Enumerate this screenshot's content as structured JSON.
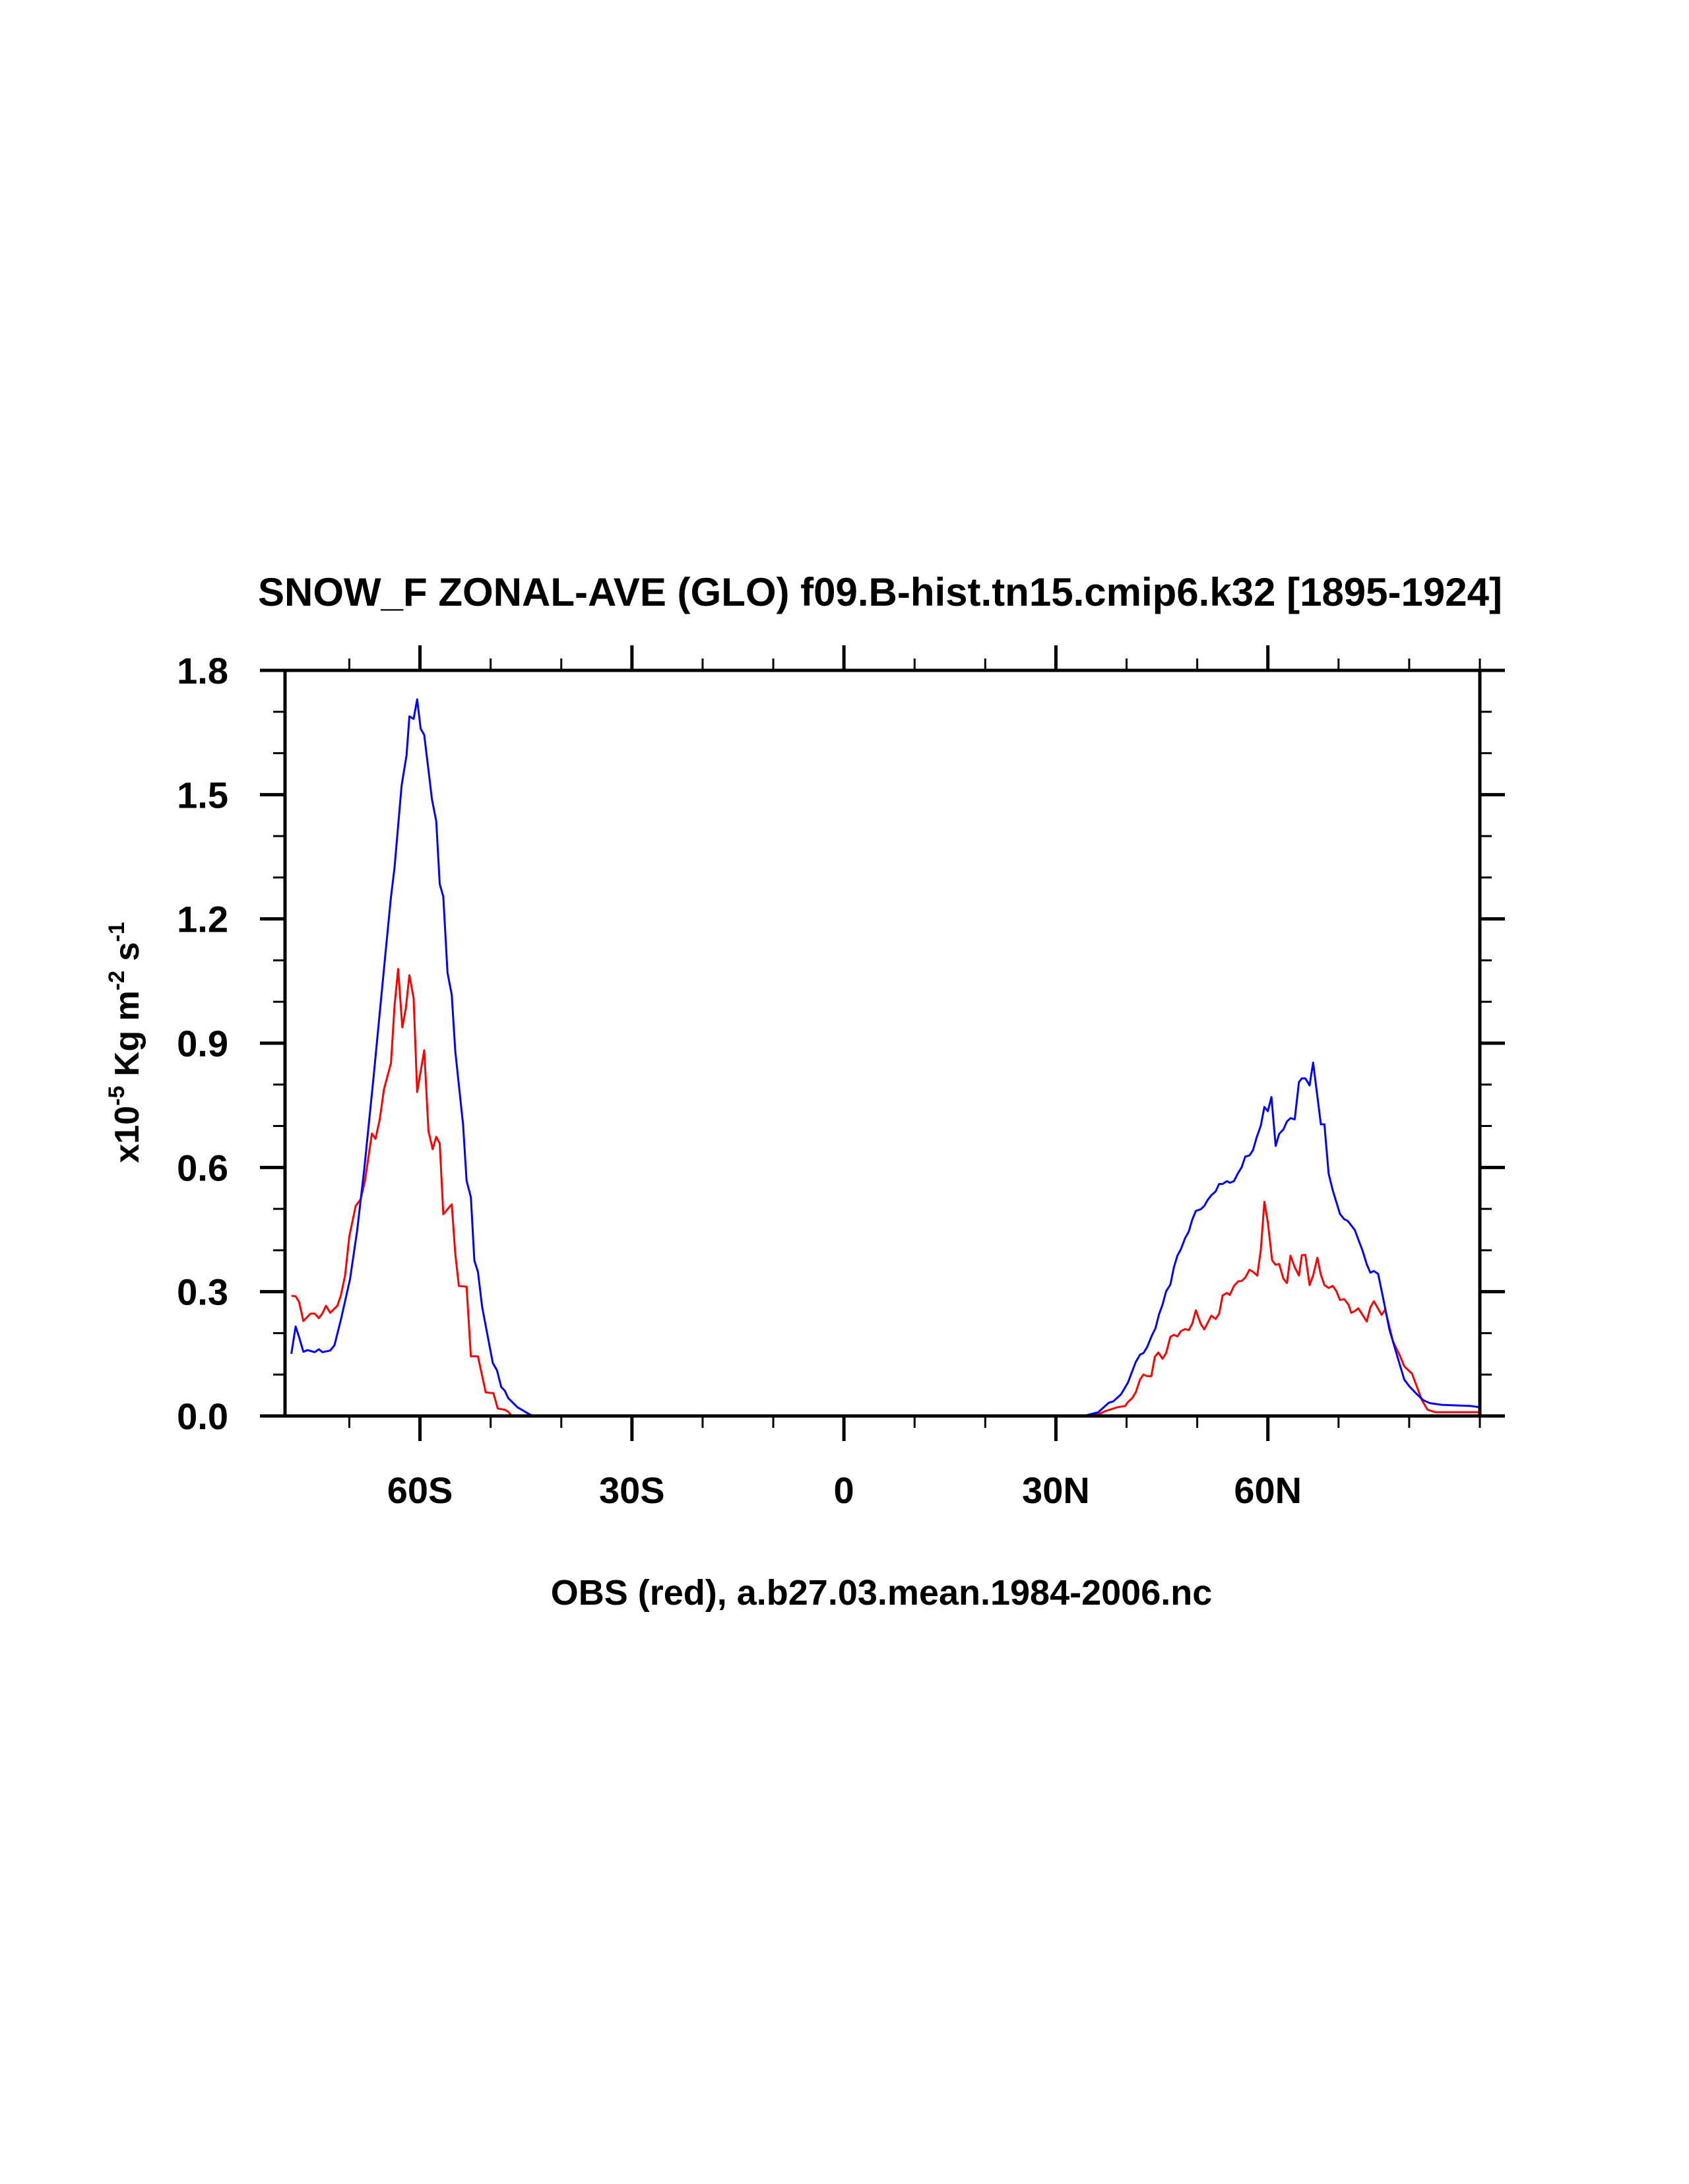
{
  "chart_data": {
    "type": "line",
    "title": "SNOW_F ZONAL-AVE (GLO) f09.B-hist.tn15.cmip6.k32 [1895-1924]",
    "xlabel": "OBS (red), a.b27.03.mean.1984-2006.nc",
    "ylabel": {
      "prefix": "x10",
      "exp1": "-5",
      "mid": " Kg m",
      "exp2": "-2",
      "mid2": " s",
      "exp3": "-1"
    },
    "xlim": [
      -79.1,
      90
    ],
    "ylim": [
      0,
      1.8
    ],
    "grid": false,
    "x_ticks": [
      {
        "value": -60,
        "label": "60S"
      },
      {
        "value": -30,
        "label": "30S"
      },
      {
        "value": 0,
        "label": "0"
      },
      {
        "value": 30,
        "label": "30N"
      },
      {
        "value": 60,
        "label": "60N"
      }
    ],
    "x_minor_step": 10,
    "y_ticks": [
      {
        "value": 0,
        "label": "0.0"
      },
      {
        "value": 0.3,
        "label": "0.3"
      },
      {
        "value": 0.6,
        "label": "0.6"
      },
      {
        "value": 0.9,
        "label": "0.9"
      },
      {
        "value": 1.2,
        "label": "1.2"
      },
      {
        "value": 1.5,
        "label": "1.5"
      },
      {
        "value": 1.8,
        "label": "1.8"
      }
    ],
    "y_minor_step": 0.1,
    "series": [
      {
        "name": "OBS",
        "color": "#ff0000",
        "points": [
          [
            -78.2,
            0.29
          ],
          [
            -77.6,
            0.289
          ],
          [
            -77.1,
            0.275
          ],
          [
            -76.5,
            0.229
          ],
          [
            -75.5,
            0.247
          ],
          [
            -74.9,
            0.247
          ],
          [
            -74.3,
            0.236
          ],
          [
            -73.8,
            0.248
          ],
          [
            -73.3,
            0.266
          ],
          [
            -72.7,
            0.249
          ],
          [
            -71.7,
            0.266
          ],
          [
            -71.2,
            0.291
          ],
          [
            -70.6,
            0.339
          ],
          [
            -70.0,
            0.434
          ],
          [
            -69.1,
            0.507
          ],
          [
            -68.4,
            0.523
          ],
          [
            -67.8,
            0.566
          ],
          [
            -66.8,
            0.682
          ],
          [
            -66.3,
            0.669
          ],
          [
            -65.7,
            0.715
          ],
          [
            -65.1,
            0.788
          ],
          [
            -64.1,
            0.852
          ],
          [
            -63.6,
            0.99
          ],
          [
            -63.1,
            1.079
          ],
          [
            -62.5,
            0.938
          ],
          [
            -62.0,
            0.984
          ],
          [
            -61.5,
            1.064
          ],
          [
            -60.9,
            1.009
          ],
          [
            -60.4,
            0.782
          ],
          [
            -59.4,
            0.883
          ],
          [
            -58.8,
            0.688
          ],
          [
            -58.2,
            0.644
          ],
          [
            -57.7,
            0.674
          ],
          [
            -57.2,
            0.658
          ],
          [
            -56.7,
            0.487
          ],
          [
            -55.5,
            0.511
          ],
          [
            -55.0,
            0.391
          ],
          [
            -54.5,
            0.314
          ],
          [
            -53.4,
            0.312
          ],
          [
            -52.8,
            0.144
          ],
          [
            -51.8,
            0.144
          ],
          [
            -50.7,
            0.057
          ],
          [
            -49.6,
            0.055
          ],
          [
            -49.0,
            0.018
          ],
          [
            -48.0,
            0.015
          ],
          [
            -47.5,
            0.01
          ],
          [
            -47.0,
            0.0
          ],
          [
            33.9,
            0.0
          ],
          [
            36.0,
            0.004
          ],
          [
            36.9,
            0.011
          ],
          [
            38.7,
            0.021
          ],
          [
            39.8,
            0.024
          ],
          [
            40.2,
            0.034
          ],
          [
            40.8,
            0.043
          ],
          [
            41.3,
            0.057
          ],
          [
            41.9,
            0.088
          ],
          [
            42.4,
            0.1
          ],
          [
            42.9,
            0.096
          ],
          [
            43.5,
            0.096
          ],
          [
            44.0,
            0.143
          ],
          [
            44.5,
            0.153
          ],
          [
            45.1,
            0.138
          ],
          [
            45.6,
            0.152
          ],
          [
            46.2,
            0.191
          ],
          [
            46.7,
            0.196
          ],
          [
            47.2,
            0.192
          ],
          [
            47.7,
            0.205
          ],
          [
            48.3,
            0.21
          ],
          [
            48.8,
            0.207
          ],
          [
            49.3,
            0.223
          ],
          [
            49.8,
            0.255
          ],
          [
            50.5,
            0.222
          ],
          [
            51.0,
            0.209
          ],
          [
            52.0,
            0.242
          ],
          [
            52.6,
            0.234
          ],
          [
            53.1,
            0.247
          ],
          [
            53.6,
            0.291
          ],
          [
            54.2,
            0.297
          ],
          [
            54.6,
            0.292
          ],
          [
            55.2,
            0.314
          ],
          [
            55.8,
            0.325
          ],
          [
            56.3,
            0.326
          ],
          [
            56.8,
            0.334
          ],
          [
            57.4,
            0.353
          ],
          [
            57.9,
            0.348
          ],
          [
            58.5,
            0.339
          ],
          [
            59.0,
            0.401
          ],
          [
            59.5,
            0.517
          ],
          [
            60.0,
            0.467
          ],
          [
            60.6,
            0.376
          ],
          [
            61.1,
            0.365
          ],
          [
            61.6,
            0.367
          ],
          [
            62.2,
            0.331
          ],
          [
            62.7,
            0.321
          ],
          [
            63.2,
            0.387
          ],
          [
            63.8,
            0.359
          ],
          [
            64.4,
            0.339
          ],
          [
            64.8,
            0.388
          ],
          [
            65.3,
            0.389
          ],
          [
            65.9,
            0.316
          ],
          [
            66.4,
            0.339
          ],
          [
            67.0,
            0.382
          ],
          [
            67.5,
            0.341
          ],
          [
            68.0,
            0.316
          ],
          [
            68.6,
            0.309
          ],
          [
            69.2,
            0.314
          ],
          [
            69.7,
            0.301
          ],
          [
            70.2,
            0.28
          ],
          [
            70.8,
            0.282
          ],
          [
            71.4,
            0.269
          ],
          [
            71.8,
            0.249
          ],
          [
            72.3,
            0.253
          ],
          [
            72.8,
            0.26
          ],
          [
            74.0,
            0.228
          ],
          [
            74.5,
            0.262
          ],
          [
            75.0,
            0.277
          ],
          [
            76.1,
            0.244
          ],
          [
            76.6,
            0.257
          ],
          [
            77.7,
            0.18
          ],
          [
            78.7,
            0.145
          ],
          [
            79.3,
            0.12
          ],
          [
            80.4,
            0.102
          ],
          [
            81.8,
            0.038
          ],
          [
            82.6,
            0.015
          ],
          [
            83.7,
            0.009
          ],
          [
            90.0,
            0.009
          ]
        ]
      },
      {
        "name": "f09.B-hist.tn15.cmip6.k32",
        "color": "#0000ff",
        "points": [
          [
            -78.2,
            0.15
          ],
          [
            -77.6,
            0.216
          ],
          [
            -77.1,
            0.19
          ],
          [
            -76.5,
            0.155
          ],
          [
            -75.9,
            0.159
          ],
          [
            -74.9,
            0.154
          ],
          [
            -74.3,
            0.161
          ],
          [
            -73.8,
            0.154
          ],
          [
            -72.7,
            0.158
          ],
          [
            -72.1,
            0.171
          ],
          [
            -71.2,
            0.232
          ],
          [
            -69.9,
            0.33
          ],
          [
            -68.9,
            0.446
          ],
          [
            -67.9,
            0.593
          ],
          [
            -66.6,
            0.813
          ],
          [
            -65.7,
            0.972
          ],
          [
            -64.8,
            1.131
          ],
          [
            -64.1,
            1.253
          ],
          [
            -63.6,
            1.324
          ],
          [
            -62.6,
            1.522
          ],
          [
            -61.9,
            1.595
          ],
          [
            -61.5,
            1.689
          ],
          [
            -60.9,
            1.683
          ],
          [
            -60.4,
            1.73
          ],
          [
            -59.9,
            1.659
          ],
          [
            -59.4,
            1.644
          ],
          [
            -58.3,
            1.488
          ],
          [
            -57.7,
            1.436
          ],
          [
            -57.2,
            1.284
          ],
          [
            -56.7,
            1.254
          ],
          [
            -56.1,
            1.07
          ],
          [
            -55.5,
            1.017
          ],
          [
            -55.0,
            0.88
          ],
          [
            -53.9,
            0.703
          ],
          [
            -53.4,
            0.568
          ],
          [
            -52.8,
            0.528
          ],
          [
            -52.3,
            0.375
          ],
          [
            -51.8,
            0.348
          ],
          [
            -51.2,
            0.263
          ],
          [
            -49.7,
            0.128
          ],
          [
            -49.1,
            0.11
          ],
          [
            -48.5,
            0.07
          ],
          [
            -48.0,
            0.061
          ],
          [
            -47.5,
            0.043
          ],
          [
            -46.2,
            0.021
          ],
          [
            -44.6,
            0.005
          ],
          [
            -44.0,
            0.0
          ],
          [
            33.9,
            0.0
          ],
          [
            36.0,
            0.009
          ],
          [
            37.5,
            0.032
          ],
          [
            38.1,
            0.035
          ],
          [
            39.2,
            0.052
          ],
          [
            40.2,
            0.081
          ],
          [
            41.3,
            0.13
          ],
          [
            41.9,
            0.148
          ],
          [
            42.4,
            0.152
          ],
          [
            42.9,
            0.166
          ],
          [
            43.6,
            0.195
          ],
          [
            44.1,
            0.212
          ],
          [
            44.6,
            0.246
          ],
          [
            45.1,
            0.269
          ],
          [
            45.6,
            0.301
          ],
          [
            46.2,
            0.317
          ],
          [
            46.7,
            0.359
          ],
          [
            47.2,
            0.387
          ],
          [
            47.7,
            0.403
          ],
          [
            48.3,
            0.43
          ],
          [
            48.8,
            0.445
          ],
          [
            49.3,
            0.474
          ],
          [
            49.8,
            0.495
          ],
          [
            50.5,
            0.499
          ],
          [
            51.0,
            0.507
          ],
          [
            51.5,
            0.522
          ],
          [
            52.0,
            0.533
          ],
          [
            52.6,
            0.542
          ],
          [
            53.1,
            0.56
          ],
          [
            53.6,
            0.56
          ],
          [
            54.2,
            0.567
          ],
          [
            54.6,
            0.563
          ],
          [
            55.2,
            0.567
          ],
          [
            55.7,
            0.584
          ],
          [
            56.3,
            0.601
          ],
          [
            56.8,
            0.626
          ],
          [
            57.4,
            0.629
          ],
          [
            57.9,
            0.642
          ],
          [
            58.4,
            0.672
          ],
          [
            59.0,
            0.701
          ],
          [
            59.5,
            0.746
          ],
          [
            60.0,
            0.736
          ],
          [
            60.5,
            0.77
          ],
          [
            61.1,
            0.652
          ],
          [
            61.6,
            0.681
          ],
          [
            62.2,
            0.692
          ],
          [
            62.7,
            0.711
          ],
          [
            63.2,
            0.719
          ],
          [
            63.8,
            0.716
          ],
          [
            64.4,
            0.806
          ],
          [
            64.8,
            0.815
          ],
          [
            65.3,
            0.815
          ],
          [
            65.9,
            0.798
          ],
          [
            66.4,
            0.853
          ],
          [
            67.0,
            0.772
          ],
          [
            67.5,
            0.704
          ],
          [
            68.0,
            0.704
          ],
          [
            68.6,
            0.585
          ],
          [
            69.2,
            0.544
          ],
          [
            70.2,
            0.488
          ],
          [
            70.8,
            0.475
          ],
          [
            71.3,
            0.471
          ],
          [
            72.3,
            0.449
          ],
          [
            73.4,
            0.399
          ],
          [
            74.0,
            0.366
          ],
          [
            74.5,
            0.346
          ],
          [
            75.0,
            0.35
          ],
          [
            75.6,
            0.343
          ],
          [
            76.2,
            0.294
          ],
          [
            77.2,
            0.209
          ],
          [
            78.3,
            0.145
          ],
          [
            79.3,
            0.088
          ],
          [
            80.0,
            0.072
          ],
          [
            81.0,
            0.054
          ],
          [
            82.0,
            0.038
          ],
          [
            82.9,
            0.031
          ],
          [
            84.6,
            0.027
          ],
          [
            88.7,
            0.024
          ],
          [
            90.0,
            0.021
          ]
        ]
      }
    ]
  }
}
